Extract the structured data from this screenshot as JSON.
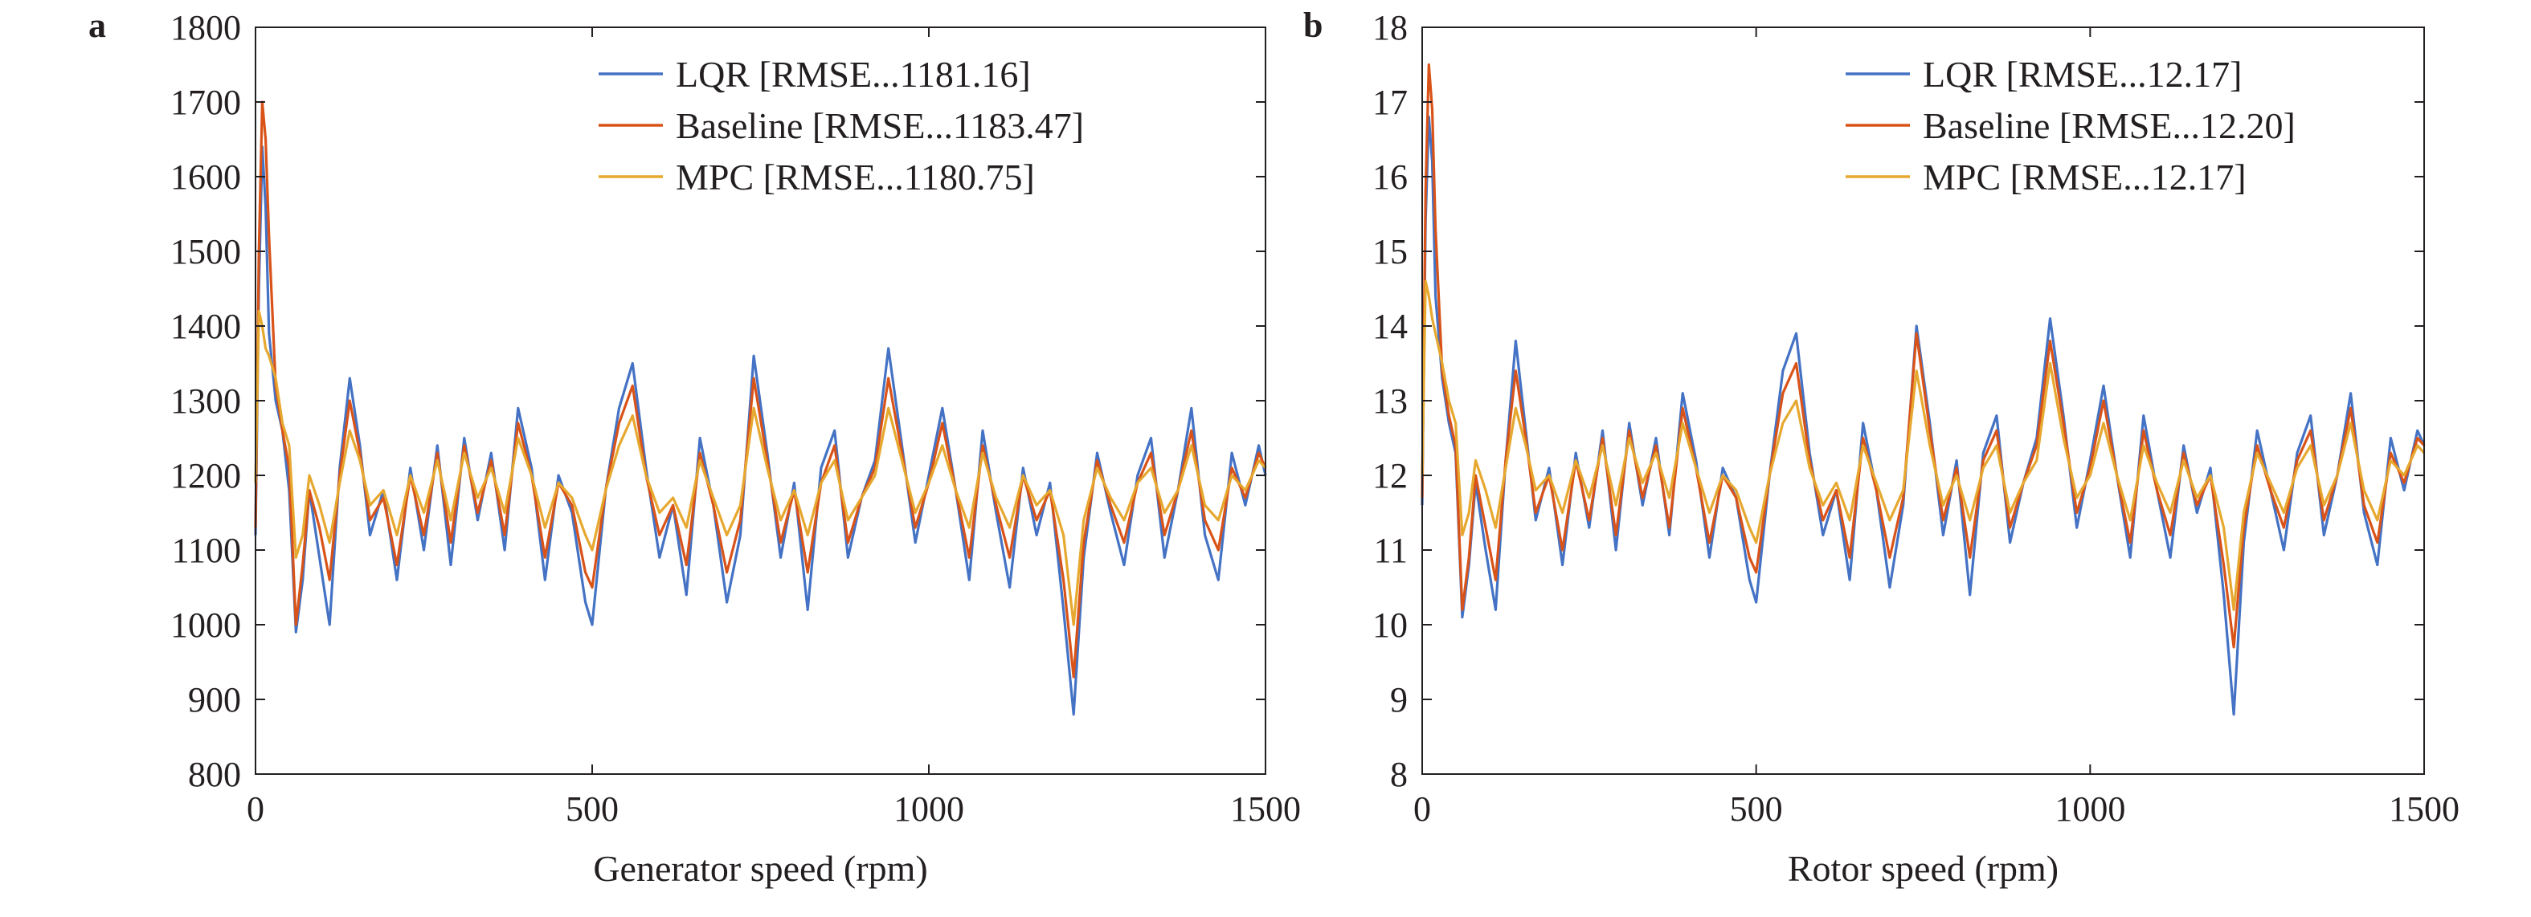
{
  "chart_data": [
    {
      "type": "line",
      "panel_label": "a",
      "xlabel": "Generator speed (rpm)",
      "ylabel": "",
      "xlim": [
        0,
        1500
      ],
      "ylim": [
        800,
        1800
      ],
      "xticks": [
        0,
        500,
        1000,
        1500
      ],
      "yticks": [
        800,
        900,
        1000,
        1100,
        1200,
        1300,
        1400,
        1500,
        1600,
        1700,
        1800
      ],
      "legend_position": "top-right",
      "grid": false,
      "x": [
        0,
        5,
        10,
        15,
        20,
        30,
        40,
        50,
        60,
        70,
        80,
        95,
        110,
        125,
        140,
        155,
        170,
        190,
        210,
        230,
        250,
        270,
        290,
        310,
        330,
        350,
        370,
        390,
        410,
        430,
        450,
        470,
        490,
        500,
        520,
        540,
        560,
        580,
        600,
        620,
        640,
        660,
        680,
        700,
        720,
        740,
        760,
        780,
        800,
        820,
        840,
        860,
        880,
        900,
        920,
        940,
        960,
        980,
        1000,
        1020,
        1040,
        1060,
        1080,
        1100,
        1120,
        1140,
        1160,
        1180,
        1200,
        1215,
        1230,
        1250,
        1270,
        1290,
        1310,
        1330,
        1350,
        1370,
        1390,
        1410,
        1430,
        1450,
        1470,
        1490,
        1500
      ],
      "series": [
        {
          "name": "LQR [RMSE...1181.16]",
          "color": "#4472c4",
          "values": [
            1120,
            1450,
            1640,
            1560,
            1390,
            1300,
            1260,
            1180,
            990,
            1060,
            1180,
            1090,
            1000,
            1210,
            1330,
            1240,
            1120,
            1180,
            1060,
            1210,
            1100,
            1240,
            1080,
            1250,
            1140,
            1230,
            1100,
            1290,
            1210,
            1060,
            1200,
            1150,
            1030,
            1000,
            1180,
            1290,
            1350,
            1210,
            1090,
            1160,
            1040,
            1250,
            1160,
            1030,
            1120,
            1360,
            1230,
            1090,
            1190,
            1020,
            1210,
            1260,
            1090,
            1170,
            1220,
            1370,
            1240,
            1110,
            1200,
            1290,
            1180,
            1060,
            1260,
            1150,
            1050,
            1210,
            1120,
            1190,
            1020,
            880,
            1090,
            1230,
            1150,
            1080,
            1200,
            1250,
            1090,
            1180,
            1290,
            1120,
            1060,
            1230,
            1160,
            1240,
            1200
          ]
        },
        {
          "name": "Baseline [RMSE...1183.47]",
          "color": "#d95319",
          "values": [
            1130,
            1500,
            1700,
            1650,
            1520,
            1320,
            1260,
            1210,
            1000,
            1080,
            1180,
            1130,
            1060,
            1200,
            1300,
            1230,
            1140,
            1170,
            1080,
            1200,
            1120,
            1230,
            1110,
            1240,
            1150,
            1220,
            1120,
            1270,
            1200,
            1090,
            1190,
            1160,
            1070,
            1050,
            1180,
            1270,
            1320,
            1200,
            1120,
            1160,
            1080,
            1230,
            1160,
            1070,
            1140,
            1330,
            1220,
            1110,
            1180,
            1070,
            1190,
            1240,
            1110,
            1170,
            1210,
            1330,
            1230,
            1130,
            1190,
            1270,
            1180,
            1090,
            1240,
            1160,
            1090,
            1200,
            1140,
            1180,
            1060,
            930,
            1110,
            1220,
            1160,
            1110,
            1190,
            1230,
            1120,
            1180,
            1260,
            1140,
            1100,
            1210,
            1170,
            1230,
            1210
          ]
        },
        {
          "name": "MPC [RMSE...1180.75]",
          "color": "#e6a82f",
          "values": [
            1190,
            1420,
            1400,
            1370,
            1360,
            1330,
            1270,
            1240,
            1090,
            1120,
            1200,
            1160,
            1110,
            1190,
            1260,
            1220,
            1160,
            1180,
            1120,
            1200,
            1150,
            1220,
            1140,
            1230,
            1170,
            1210,
            1150,
            1250,
            1200,
            1130,
            1190,
            1170,
            1120,
            1100,
            1180,
            1240,
            1280,
            1200,
            1150,
            1170,
            1130,
            1220,
            1170,
            1120,
            1160,
            1290,
            1210,
            1140,
            1180,
            1120,
            1190,
            1220,
            1140,
            1170,
            1200,
            1290,
            1220,
            1150,
            1190,
            1240,
            1180,
            1130,
            1230,
            1170,
            1130,
            1200,
            1160,
            1180,
            1120,
            1000,
            1140,
            1210,
            1170,
            1140,
            1190,
            1210,
            1150,
            1180,
            1240,
            1160,
            1140,
            1200,
            1180,
            1220,
            1210
          ]
        }
      ]
    },
    {
      "type": "line",
      "panel_label": "b",
      "xlabel": "Rotor speed (rpm)",
      "ylabel": "",
      "xlim": [
        0,
        1500
      ],
      "ylim": [
        8,
        18
      ],
      "xticks": [
        0,
        500,
        1000,
        1500
      ],
      "yticks": [
        8,
        9,
        10,
        11,
        12,
        13,
        14,
        15,
        16,
        17,
        18
      ],
      "legend_position": "top-right",
      "grid": false,
      "x": [
        0,
        5,
        10,
        15,
        20,
        30,
        40,
        50,
        60,
        70,
        80,
        95,
        110,
        125,
        140,
        155,
        170,
        190,
        210,
        230,
        250,
        270,
        290,
        310,
        330,
        350,
        370,
        390,
        410,
        430,
        450,
        470,
        490,
        500,
        520,
        540,
        560,
        580,
        600,
        620,
        640,
        660,
        680,
        700,
        720,
        740,
        760,
        780,
        800,
        820,
        840,
        860,
        880,
        900,
        920,
        940,
        960,
        980,
        1000,
        1020,
        1040,
        1060,
        1080,
        1100,
        1120,
        1140,
        1160,
        1180,
        1200,
        1215,
        1230,
        1250,
        1270,
        1290,
        1310,
        1330,
        1350,
        1370,
        1390,
        1410,
        1430,
        1450,
        1470,
        1490,
        1500
      ],
      "series": [
        {
          "name": "LQR [RMSE...12.17]",
          "color": "#4472c4",
          "values": [
            11.6,
            15.4,
            16.8,
            16.2,
            14.4,
            13.3,
            12.7,
            12.3,
            10.1,
            10.8,
            11.9,
            11.0,
            10.2,
            12.2,
            13.8,
            12.6,
            11.4,
            12.1,
            10.8,
            12.3,
            11.3,
            12.6,
            11.0,
            12.7,
            11.6,
            12.5,
            11.2,
            13.1,
            12.2,
            10.9,
            12.1,
            11.7,
            10.6,
            10.3,
            12.0,
            13.4,
            13.9,
            12.3,
            11.2,
            11.8,
            10.6,
            12.7,
            11.8,
            10.5,
            11.6,
            14.0,
            12.7,
            11.2,
            12.2,
            10.4,
            12.3,
            12.8,
            11.1,
            11.9,
            12.5,
            14.1,
            12.8,
            11.3,
            12.2,
            13.2,
            12.0,
            10.9,
            12.8,
            11.8,
            10.9,
            12.4,
            11.5,
            12.1,
            10.4,
            8.8,
            11.1,
            12.6,
            11.8,
            11.0,
            12.3,
            12.8,
            11.2,
            12.0,
            13.1,
            11.5,
            10.8,
            12.5,
            11.8,
            12.6,
            12.4
          ]
        },
        {
          "name": "Baseline [RMSE...12.20]",
          "color": "#d95319",
          "values": [
            11.7,
            15.8,
            17.5,
            16.9,
            15.3,
            13.4,
            12.8,
            12.4,
            10.2,
            10.9,
            12.0,
            11.3,
            10.6,
            12.2,
            13.4,
            12.5,
            11.5,
            12.0,
            11.0,
            12.2,
            11.4,
            12.5,
            11.2,
            12.6,
            11.7,
            12.4,
            11.3,
            12.9,
            12.1,
            11.1,
            12.0,
            11.7,
            10.9,
            10.7,
            12.0,
            13.1,
            13.5,
            12.2,
            11.4,
            11.8,
            10.9,
            12.5,
            11.8,
            10.9,
            11.7,
            13.9,
            12.6,
            11.4,
            12.1,
            10.9,
            12.2,
            12.6,
            11.3,
            11.9,
            12.4,
            13.8,
            12.7,
            11.5,
            12.1,
            13.0,
            12.0,
            11.1,
            12.6,
            11.8,
            11.2,
            12.3,
            11.6,
            12.0,
            10.8,
            9.7,
            11.3,
            12.4,
            11.8,
            11.3,
            12.2,
            12.6,
            11.4,
            12.0,
            12.9,
            11.6,
            11.1,
            12.3,
            11.9,
            12.5,
            12.4
          ]
        },
        {
          "name": "MPC [RMSE...12.17]",
          "color": "#e6a82f",
          "values": [
            12.0,
            14.6,
            14.4,
            14.1,
            13.9,
            13.5,
            13.0,
            12.7,
            11.2,
            11.5,
            12.2,
            11.8,
            11.3,
            12.1,
            12.9,
            12.4,
            11.8,
            12.0,
            11.5,
            12.2,
            11.7,
            12.4,
            11.6,
            12.5,
            11.9,
            12.3,
            11.7,
            12.7,
            12.1,
            11.5,
            12.0,
            11.8,
            11.3,
            11.1,
            12.0,
            12.7,
            13.0,
            12.1,
            11.6,
            11.9,
            11.4,
            12.4,
            11.9,
            11.4,
            11.8,
            13.4,
            12.4,
            11.6,
            12.0,
            11.4,
            12.1,
            12.4,
            11.5,
            11.9,
            12.2,
            13.5,
            12.5,
            11.7,
            12.0,
            12.7,
            12.0,
            11.4,
            12.4,
            11.9,
            11.5,
            12.2,
            11.7,
            12.0,
            11.3,
            10.2,
            11.5,
            12.3,
            11.9,
            11.5,
            12.1,
            12.4,
            11.6,
            12.0,
            12.7,
            11.8,
            11.4,
            12.2,
            12.0,
            12.4,
            12.3
          ]
        }
      ]
    }
  ]
}
